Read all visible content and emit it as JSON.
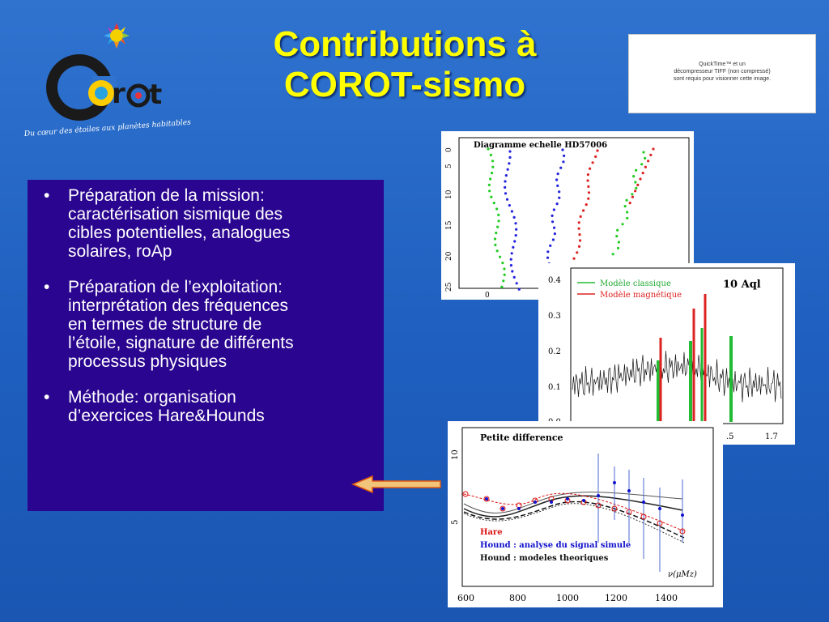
{
  "slide": {
    "title_line1": "Contributions à",
    "title_line2": "COROT-sismo",
    "colors": {
      "background": "#2368c8",
      "title": "#ffff00",
      "bullet_panel": "#2a058f"
    }
  },
  "logo": {
    "wordmark": "Corot",
    "tagline": "Du cœur des étoiles aux planètes habitables"
  },
  "quicktime_placeholder": {
    "line1": "QuickTime™ et un",
    "line2": "décompresseur TIFF (non compressé)",
    "line3": "sont requis pour visionner cette image."
  },
  "bullets": [
    {
      "symbol": "•",
      "lines": [
        "Préparation de la mission:",
        "caractérisation sismique des",
        "cibles potentielles, analogues",
        "solaires, roAp"
      ]
    },
    {
      "symbol": "•",
      "lines": [
        "Préparation de l’exploitation:",
        "interprétation des fréquences",
        "en termes de structure de",
        "l’étoile, signature de différents",
        "processus physiques"
      ]
    },
    {
      "symbol": "•",
      "lines": [
        "Méthode: organisation",
        "d’exercices Hare&Hounds"
      ]
    }
  ],
  "figures": {
    "echelle": {
      "title": "Diagramme echelle HD57006",
      "y_ticks": [
        "0",
        "5",
        "10",
        "15",
        "20",
        "25"
      ],
      "x_ticks": [
        "0"
      ],
      "colors": {
        "green": "#22cc22",
        "blue": "#2222dd",
        "red": "#dd2222"
      }
    },
    "spectrum": {
      "label": "10 Aql",
      "legend": [
        {
          "name": "Modèle classique",
          "color": "#22bb33"
        },
        {
          "name": "Modèle magnétique",
          "color": "#dd2222"
        }
      ],
      "y_ticks": [
        "0.4",
        "0.3",
        "0.2",
        "0.1",
        "0.0"
      ],
      "x_ticks": [
        ".5",
        "1.7"
      ]
    },
    "petite": {
      "title": "Petite difference",
      "y_ticks": [
        "10",
        "5"
      ],
      "x_ticks": [
        "600",
        "800",
        "1000",
        "1200",
        "1400"
      ],
      "xlabel": "ν(μMz)",
      "legend": [
        {
          "text": "Hare",
          "color": "#dd1111"
        },
        {
          "text": "Hound : analyse du signal simule",
          "color": "#1111cc"
        },
        {
          "text": "Hound : modeles theoriques",
          "color": "#111111"
        }
      ]
    }
  }
}
